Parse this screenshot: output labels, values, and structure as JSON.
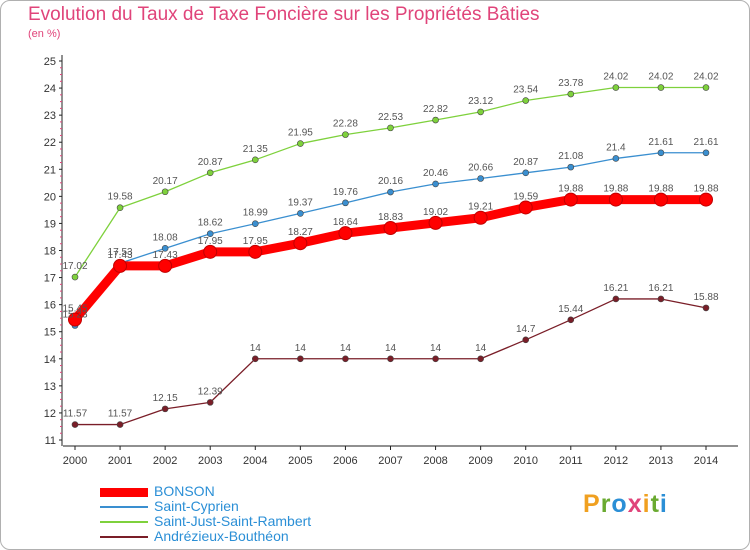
{
  "title": "Evolution du Taux de Taxe Foncière sur les Propriétés Bâties",
  "unit": "(en %)",
  "logo": [
    "P",
    "r",
    "o",
    "x",
    "i",
    "t",
    "i"
  ],
  "chart_data": {
    "type": "line",
    "title": "Evolution du Taux de Taxe Foncière sur les Propriétés Bâties",
    "xlabel": "",
    "ylabel": "(en %)",
    "ylim": [
      11,
      25
    ],
    "grid": false,
    "legend_position": "bottom-left",
    "x": [
      2000,
      2001,
      2002,
      2003,
      2004,
      2005,
      2006,
      2007,
      2008,
      2009,
      2010,
      2011,
      2012,
      2013,
      2014
    ],
    "yticks": [
      11,
      12,
      13,
      14,
      15,
      16,
      17,
      18,
      19,
      20,
      21,
      22,
      23,
      24,
      25
    ],
    "series": [
      {
        "name": "BONSON",
        "color": "#ff0000",
        "values": [
          15.45,
          17.43,
          17.43,
          17.95,
          17.95,
          18.27,
          18.64,
          18.83,
          19.02,
          19.21,
          19.59,
          19.88,
          19.88,
          19.88,
          19.88
        ],
        "labels": [
          "15.45",
          "17.43",
          "17.43",
          "17.95",
          "17.95",
          "18.27",
          "18.64",
          "18.83",
          "19.02",
          "19.21",
          "19.59",
          "19.88",
          "19.88",
          "19.88",
          "19.88"
        ]
      },
      {
        "name": "Saint-Cyprien",
        "color": "#3a8fd0",
        "values": [
          15.23,
          17.53,
          18.08,
          18.62,
          18.99,
          19.37,
          19.76,
          20.16,
          20.46,
          20.66,
          20.87,
          21.08,
          21.4,
          21.61,
          21.61
        ],
        "labels": [
          "15.23",
          "17.53",
          "18.08",
          "18.62",
          "18.99",
          "19.37",
          "19.76",
          "20.16",
          "20.46",
          "20.66",
          "20.87",
          "21.08",
          "21.4",
          "21.61",
          "21.61"
        ]
      },
      {
        "name": "Saint-Just-Saint-Rambert",
        "color": "#7ed13c",
        "values": [
          17.02,
          19.58,
          20.17,
          20.87,
          21.35,
          21.95,
          22.28,
          22.53,
          22.82,
          23.12,
          23.54,
          23.78,
          24.02,
          24.02,
          24.02
        ],
        "labels": [
          "17.02",
          "19.58",
          "20.17",
          "20.87",
          "21.35",
          "21.95",
          "22.28",
          "22.53",
          "22.82",
          "23.12",
          "23.54",
          "23.78",
          "24.02",
          "24.02",
          "24.02"
        ]
      },
      {
        "name": "Andrézieux-Bouthéon",
        "color": "#7a1e28",
        "values": [
          11.57,
          11.57,
          12.15,
          12.39,
          14,
          14,
          14,
          14,
          14,
          14,
          14.7,
          15.44,
          16.21,
          16.21,
          15.88
        ],
        "labels": [
          "11.57",
          "11.57",
          "12.15",
          "12.39",
          "14",
          "14",
          "14",
          "14",
          "14",
          "14",
          "14.7",
          "15.44",
          "16.21",
          "16.21",
          "15.88"
        ]
      }
    ]
  }
}
